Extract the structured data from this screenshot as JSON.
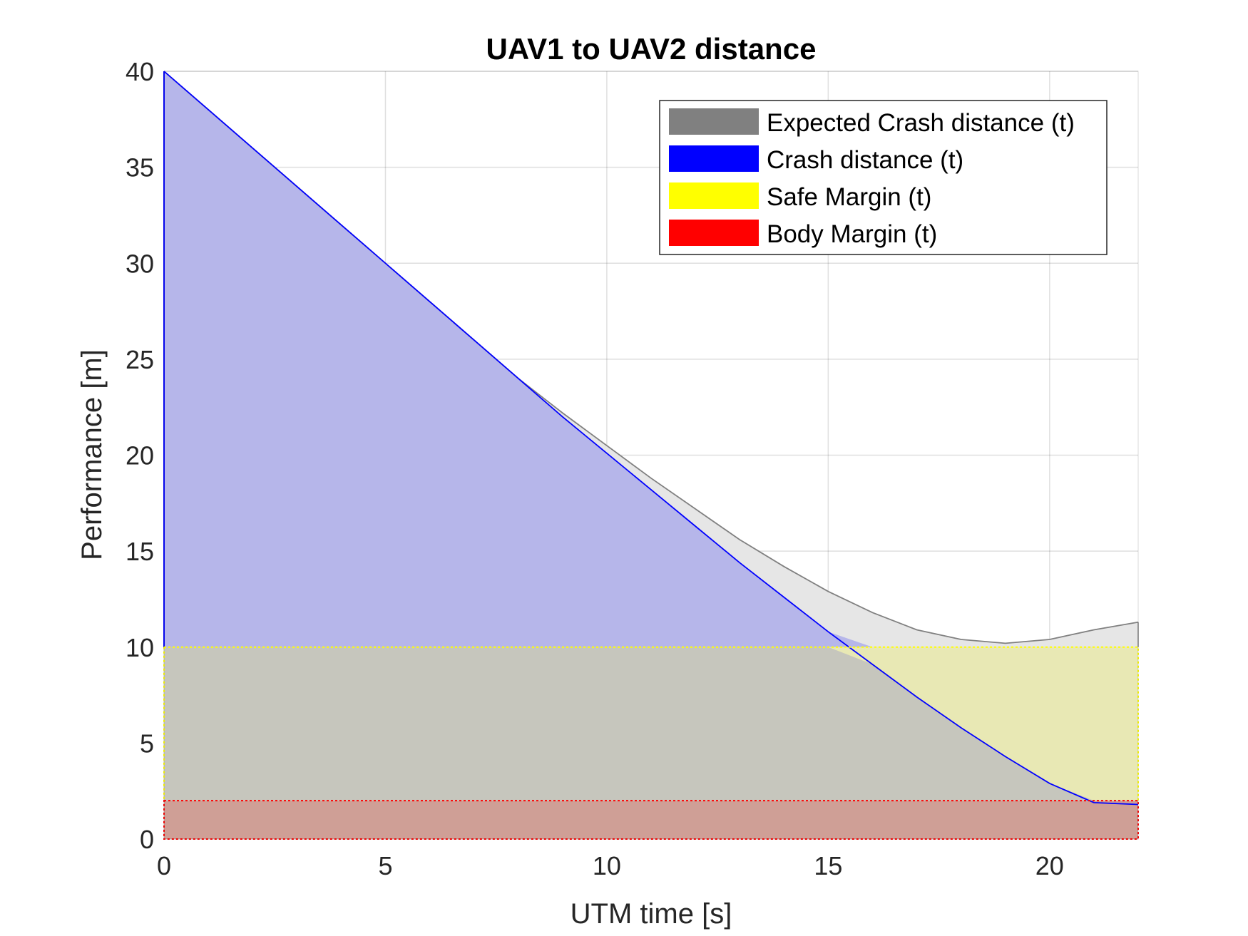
{
  "chart_data": {
    "type": "area",
    "title": "UAV1 to UAV2 distance",
    "xlabel": "UTM time [s]",
    "ylabel": "Performance [m]",
    "xlim": [
      0,
      22
    ],
    "ylim": [
      0,
      40
    ],
    "xticks": [
      0,
      5,
      10,
      15,
      20
    ],
    "yticks": [
      0,
      5,
      10,
      15,
      20,
      25,
      30,
      35,
      40
    ],
    "grid": true,
    "legend_position": "top-right",
    "series": [
      {
        "name": "Expected Crash distance (t)",
        "color": "#808080",
        "fill": "#e6e6e6",
        "x": [
          0,
          1,
          2,
          3,
          4,
          5,
          6,
          7,
          8,
          9,
          10,
          11,
          12,
          13,
          14,
          15,
          16,
          17,
          18,
          19,
          20,
          21,
          22
        ],
        "y": [
          40,
          38,
          36,
          34,
          32,
          30,
          28,
          26,
          24,
          22.2,
          20.5,
          18.8,
          17.2,
          15.6,
          14.2,
          12.9,
          11.8,
          10.9,
          10.4,
          10.2,
          10.4,
          10.9,
          11.3
        ]
      },
      {
        "name": "Crash distance (t)",
        "color": "#0000ff",
        "fill": "#b6b6ea",
        "x": [
          0,
          1,
          2,
          3,
          4,
          5,
          6,
          7,
          8,
          9,
          10,
          11,
          12,
          13,
          14,
          15,
          16,
          17,
          18,
          19,
          20,
          21,
          22
        ],
        "y": [
          40,
          38,
          36,
          34,
          32,
          30,
          28,
          26,
          24,
          22,
          20.1,
          18.2,
          16.3,
          14.4,
          12.6,
          10.8,
          9.1,
          7.4,
          5.8,
          4.3,
          2.9,
          1.9,
          1.8
        ]
      },
      {
        "name": "Safe Margin (t)",
        "color": "#ffff00",
        "fill": "#e8e8b4",
        "x": [
          0,
          22
        ],
        "y": [
          10,
          10
        ]
      },
      {
        "name": "Body Margin (t)",
        "color": "#ff0000",
        "fill": "#cf9f96",
        "x": [
          0,
          22
        ],
        "y": [
          2,
          2
        ]
      }
    ],
    "overlap_fills": {
      "expected_over_safe": "#c6c6bd"
    }
  }
}
